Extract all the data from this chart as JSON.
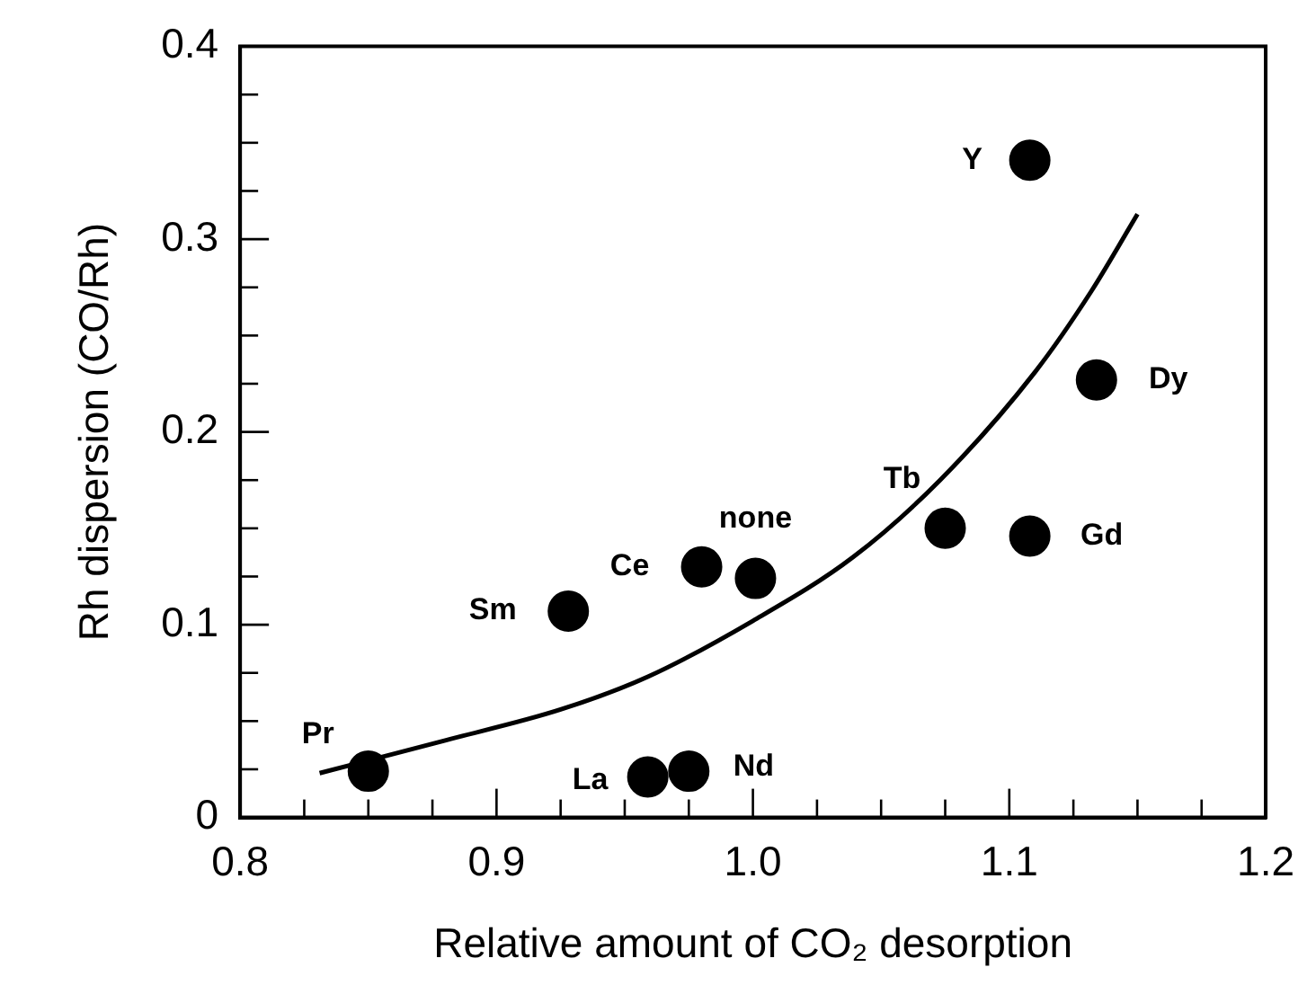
{
  "chart_data": {
    "type": "scatter",
    "xlabel": "Relative amount of CO₂ desorption",
    "ylabel": "Rh dispersion (CO/Rh)",
    "series": [
      {
        "type": "scatter",
        "color": "#000000",
        "marker": "circle",
        "x": [
          0.85,
          0.959,
          0.975,
          0.928,
          0.98,
          1.001,
          1.075,
          1.108,
          1.134,
          1.108
        ],
        "values": [
          0.024,
          0.021,
          0.024,
          0.107,
          0.13,
          0.124,
          0.15,
          0.146,
          0.227,
          0.341
        ],
        "value_labels": [
          "Pr",
          "La",
          "Nd",
          "Sm",
          "Ce",
          "none",
          "Tb",
          "Gd",
          "Dy",
          "Y"
        ]
      },
      {
        "type": "line",
        "color": "#000000",
        "marker": "none",
        "line_style": "solid",
        "x": [
          0.831,
          0.88,
          0.925,
          0.959,
          1.0,
          1.039,
          1.073,
          1.11,
          1.132,
          1.15
        ],
        "values": [
          0.023,
          0.04,
          0.056,
          0.073,
          0.102,
          0.135,
          0.175,
          0.231,
          0.273,
          0.313
        ]
      }
    ],
    "xlim": [
      0.8,
      1.2
    ],
    "ylim": [
      0,
      0.4
    ],
    "xticks": [
      {
        "value": 0.8,
        "label": "0.8"
      },
      {
        "value": 0.825,
        "label": null
      },
      {
        "value": 0.85,
        "label": null
      },
      {
        "value": 0.875,
        "label": null
      },
      {
        "value": 0.9,
        "label": "0.9"
      },
      {
        "value": 0.925,
        "label": null
      },
      {
        "value": 0.95,
        "label": null
      },
      {
        "value": 0.975,
        "label": null
      },
      {
        "value": 1.0,
        "label": "1.0"
      },
      {
        "value": 1.025,
        "label": null
      },
      {
        "value": 1.05,
        "label": null
      },
      {
        "value": 1.075,
        "label": null
      },
      {
        "value": 1.1,
        "label": "1.1"
      },
      {
        "value": 1.125,
        "label": null
      },
      {
        "value": 1.15,
        "label": null
      },
      {
        "value": 1.175,
        "label": null
      },
      {
        "value": 1.2,
        "label": "1.2"
      }
    ],
    "yticks": [
      0,
      {
        "value": 0.025,
        "label": null
      },
      {
        "value": 0.05,
        "label": null
      },
      {
        "value": 0.075,
        "label": null
      },
      0.1,
      {
        "value": 0.125,
        "label": null
      },
      {
        "value": 0.15,
        "label": null
      },
      {
        "value": 0.175,
        "label": null
      },
      0.2,
      {
        "value": 0.225,
        "label": null
      },
      {
        "value": 0.25,
        "label": null
      },
      {
        "value": 0.275,
        "label": null
      },
      0.3,
      {
        "value": 0.325,
        "label": null
      },
      {
        "value": 0.35,
        "label": null
      },
      {
        "value": 0.375,
        "label": null
      },
      0.4
    ],
    "grid": false,
    "legend": false
  }
}
